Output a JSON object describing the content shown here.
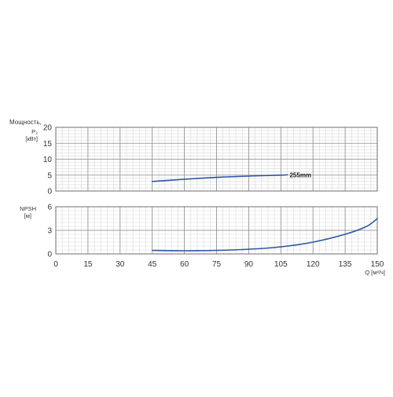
{
  "chart_data": [
    {
      "type": "line",
      "ylabel": [
        "Мощность,",
        "P₂",
        "[кВт]"
      ],
      "yticks": [
        "20",
        "15",
        "10",
        "5",
        "0"
      ],
      "ylim": [
        0,
        20
      ],
      "xlim": [
        0,
        150
      ],
      "grid": true,
      "series": [
        {
          "name": "255mm",
          "color": "#2b56a6",
          "x": [
            45,
            60,
            75,
            90,
            105,
            108
          ],
          "y": [
            3.0,
            3.7,
            4.3,
            4.7,
            5.0,
            5.1
          ]
        }
      ]
    },
    {
      "type": "line",
      "ylabel": [
        "NPSH",
        "[м]"
      ],
      "yticks": [
        "6",
        "3",
        "0"
      ],
      "ylim": [
        0,
        6
      ],
      "xlim": [
        0,
        150
      ],
      "grid": true,
      "series": [
        {
          "color": "#2b56a6",
          "x": [
            45,
            60,
            75,
            90,
            105,
            120,
            135,
            145,
            150
          ],
          "y": [
            0.45,
            0.4,
            0.45,
            0.6,
            0.9,
            1.5,
            2.5,
            3.5,
            4.5
          ]
        }
      ]
    }
  ],
  "x_axis": {
    "ticks": [
      "0",
      "15",
      "30",
      "45",
      "60",
      "75",
      "90",
      "105",
      "120",
      "135",
      "150"
    ],
    "values": [
      0,
      15,
      30,
      45,
      60,
      75,
      90,
      105,
      120,
      135,
      150
    ],
    "label": "Q [м³/ч]"
  }
}
